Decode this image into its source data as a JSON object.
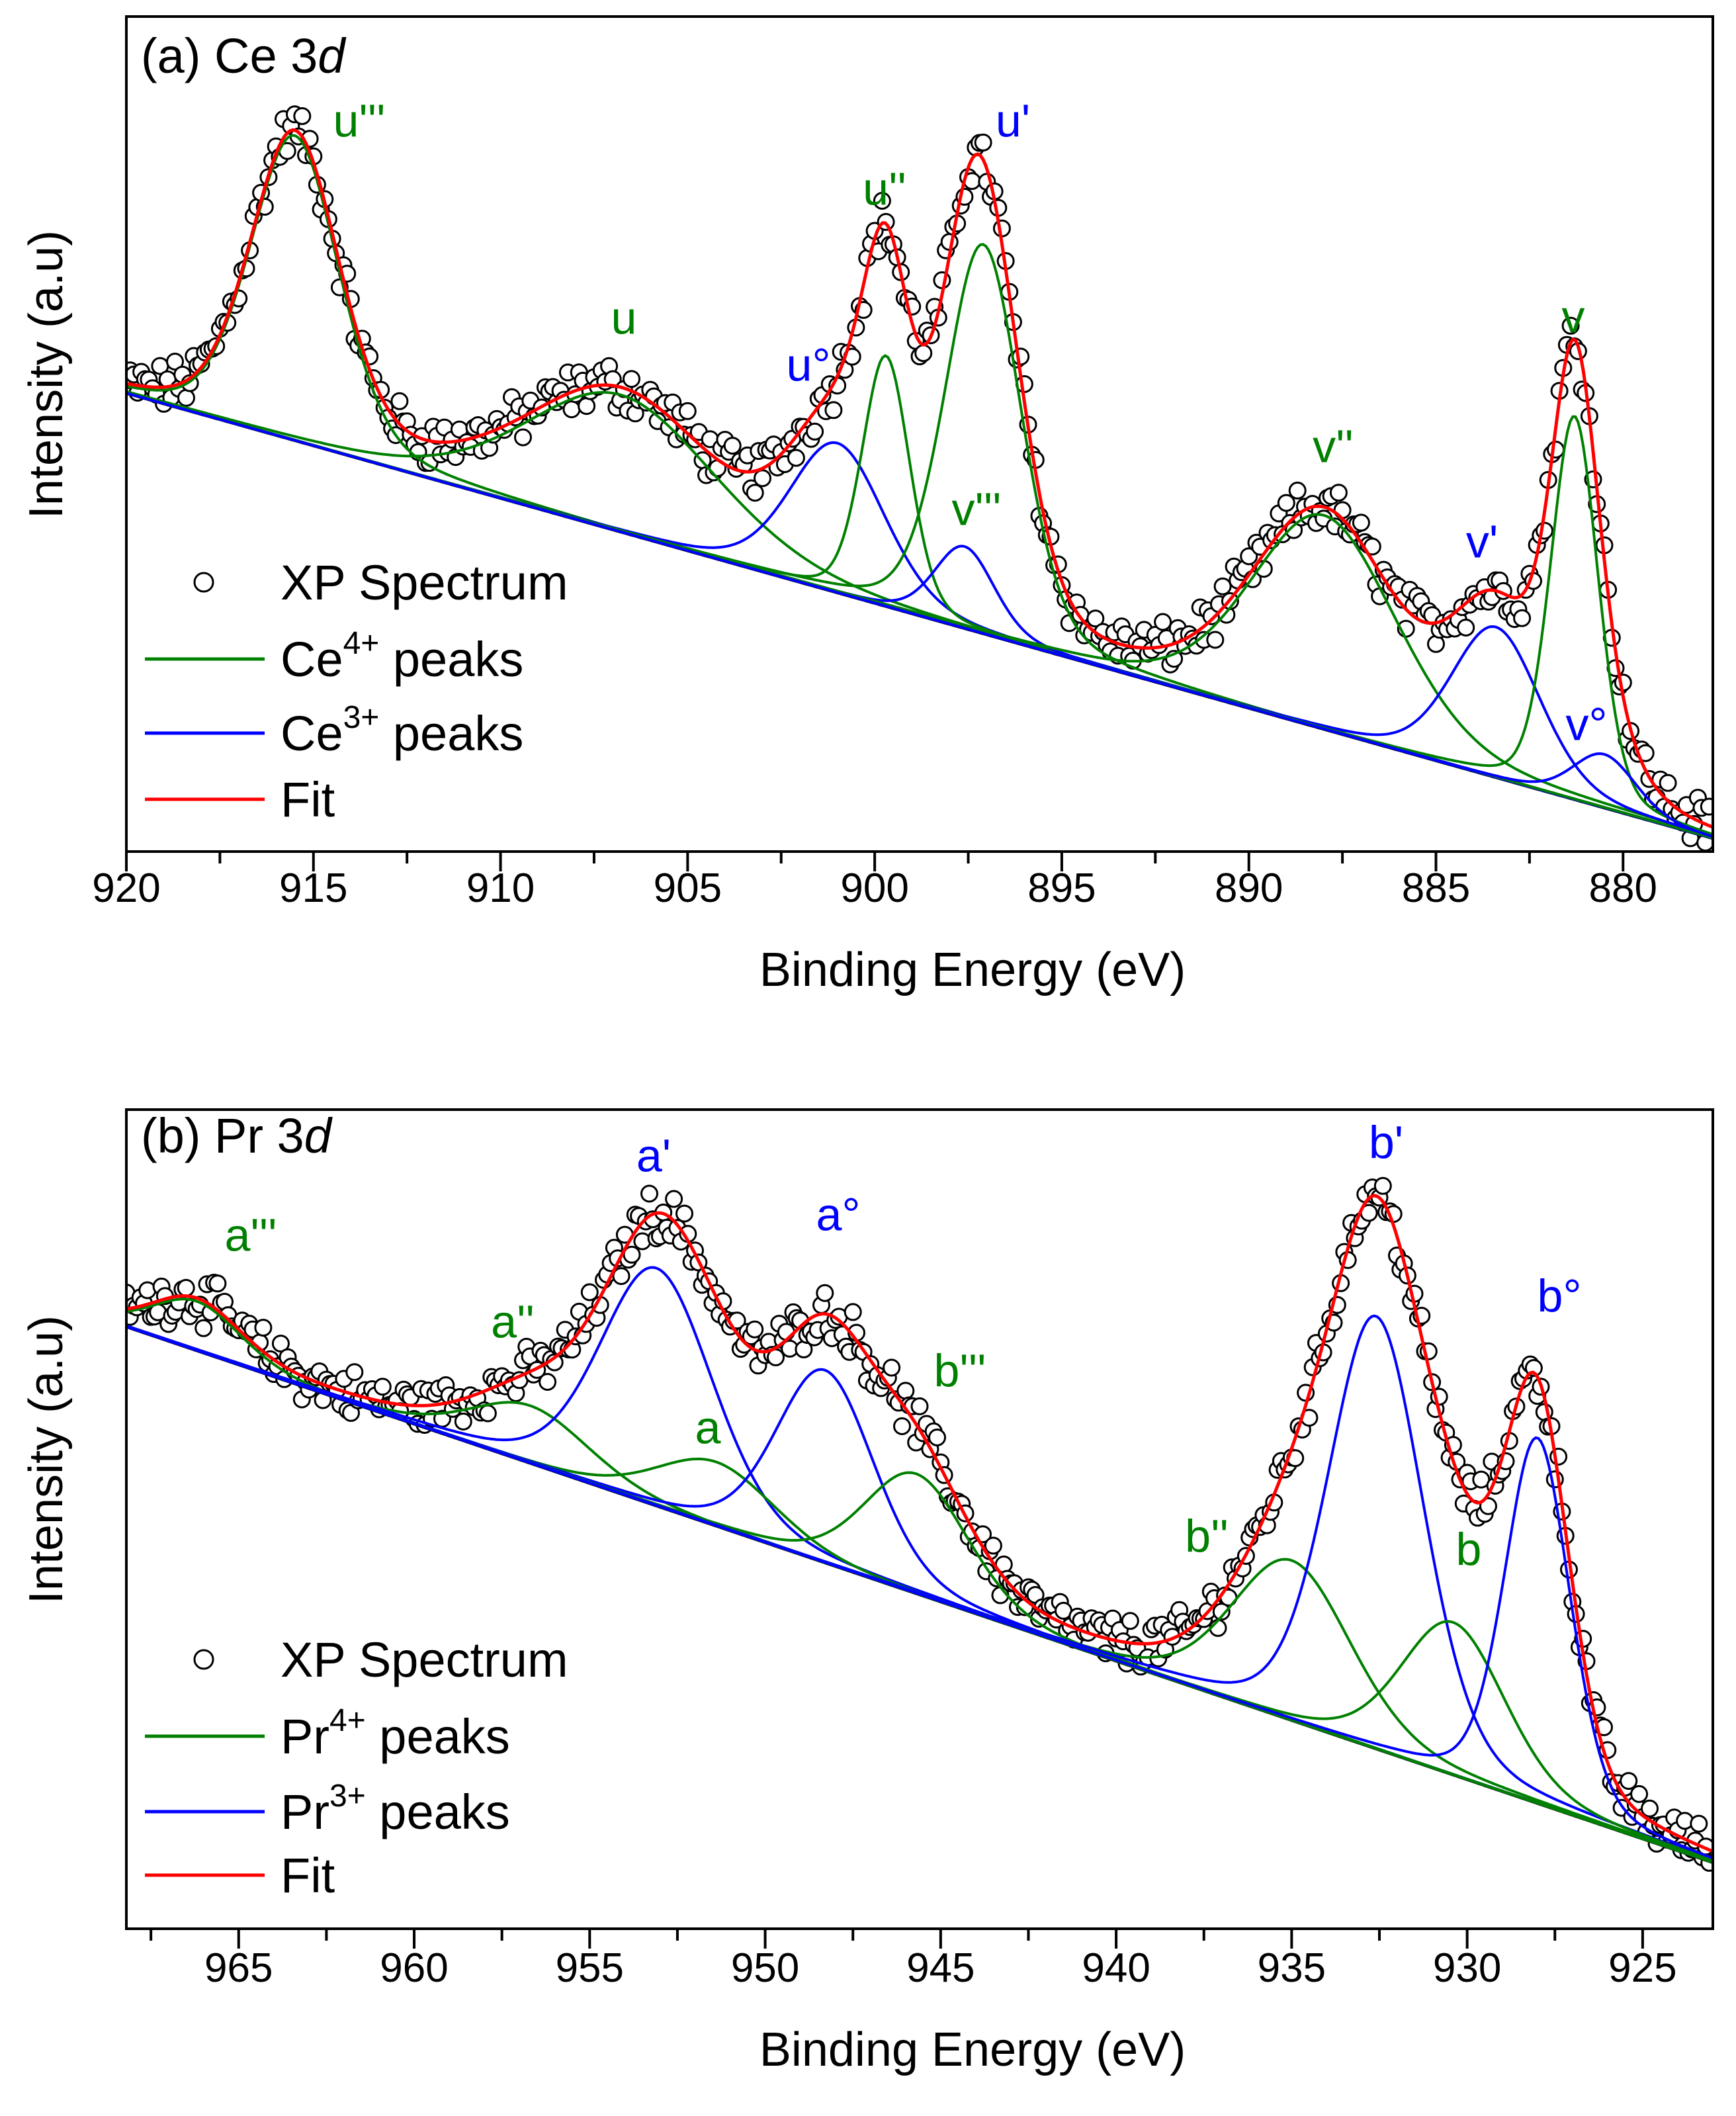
{
  "chart_data": [
    {
      "type": "scatter",
      "title": "(a) Ce 3",
      "title_italic": "d",
      "xlabel": "Binding Energy (eV)",
      "ylabel": "Intensity (a.u)",
      "xlim": [
        920,
        877.6
      ],
      "x_reversed": true,
      "ylim": [
        0,
        100
      ],
      "y_ticks_shown": false,
      "xticks": [
        920,
        915,
        910,
        905,
        900,
        895,
        890,
        885,
        880
      ],
      "grid": false,
      "legend_placement": "bottom-left",
      "legend": [
        {
          "kind": "marker",
          "name": "XP Spectrum",
          "sup": "",
          "suffix": ""
        },
        {
          "kind": "line",
          "name": "Ce",
          "sup": "4+",
          "suffix": " peaks",
          "color": "#008000"
        },
        {
          "kind": "line",
          "name": "Ce",
          "sup": "3+",
          "suffix": " peaks",
          "color": "#0000ff"
        },
        {
          "kind": "line",
          "name": "Fit",
          "sup": "",
          "suffix": "",
          "color": "#ff0000"
        }
      ],
      "baseline": {
        "x": [
          920,
          877.6
        ],
        "y": [
          54.9,
          1.6
        ],
        "color": "#000000"
      },
      "components": [
        {
          "label": "u'''",
          "center": 915.5,
          "height": 36.5,
          "fwhm": 2.8,
          "group": "Ce4+"
        },
        {
          "label": "u''",
          "center": 906.8,
          "height": 16.4,
          "fwhm": 6.0,
          "group": "Ce4+"
        },
        {
          "label": "u'",
          "center": 901.0,
          "height": 17.9,
          "fwhm": 3.0,
          "group": "Ce3+"
        },
        {
          "label": "u",
          "center": 899.7,
          "height": 30.0,
          "fwhm": 1.5,
          "group": "Ce4+"
        },
        {
          "label": "u°",
          "center": 897.6,
          "height": 9.8,
          "fwhm": 1.9,
          "group": "Ce3+"
        },
        {
          "label": "v'''",
          "center": 897.1,
          "height": 46.6,
          "fwhm": 2.4,
          "group": "Ce4+"
        },
        {
          "label": "v''",
          "center": 888.0,
          "height": 25.6,
          "fwhm": 4.6,
          "group": "Ce4+"
        },
        {
          "label": "v'",
          "center": 883.4,
          "height": 18.0,
          "fwhm": 2.8,
          "group": "Ce3+"
        },
        {
          "label": "v",
          "center": 881.3,
          "height": 45.9,
          "fwhm": 1.5,
          "group": "Ce4+"
        },
        {
          "label": "v°",
          "center": 880.5,
          "height": 6.4,
          "fwhm": 2.0,
          "group": "Ce3+"
        }
      ],
      "colors": {
        "Ce4+": "#008000",
        "Ce3+": "#0000ff",
        "fit": "#ff0000",
        "points": "#000000"
      }
    },
    {
      "type": "scatter",
      "title": "(b) Pr 3",
      "title_italic": "d",
      "xlabel": "Binding Energy (eV)",
      "ylabel": "Intensity (a.u)",
      "xlim": [
        968.2,
        923.0
      ],
      "x_reversed": true,
      "ylim": [
        0,
        100
      ],
      "y_ticks_shown": false,
      "xticks": [
        965,
        960,
        955,
        950,
        945,
        940,
        935,
        930,
        925
      ],
      "grid": false,
      "legend_placement": "bottom-left",
      "legend": [
        {
          "kind": "marker",
          "name": "XP Spectrum",
          "sup": "",
          "suffix": ""
        },
        {
          "kind": "line",
          "name": "Pr",
          "sup": "4+",
          "suffix": " peaks",
          "color": "#008000"
        },
        {
          "kind": "line",
          "name": "Pr",
          "sup": "3+",
          "suffix": " peaks",
          "color": "#0000ff"
        },
        {
          "kind": "line",
          "name": "Fit",
          "sup": "",
          "suffix": "",
          "color": "#ff0000"
        }
      ],
      "baseline": {
        "x": [
          968.2,
          923.0
        ],
        "y": [
          73.5,
          8.1
        ],
        "color": "#000000"
      },
      "components": [
        {
          "label": "a'''",
          "center": 966.2,
          "height": 6.0,
          "fwhm": 3.0,
          "group": "Pr4+"
        },
        {
          "label": "a''",
          "center": 956.7,
          "height": 7.0,
          "fwhm": 4.0,
          "group": "Pr4+"
        },
        {
          "label": "a'",
          "center": 953.1,
          "height": 29.0,
          "fwhm": 3.8,
          "group": "Pr3+"
        },
        {
          "label": "a",
          "center": 951.4,
          "height": 7.8,
          "fwhm": 4.0,
          "group": "Pr4+"
        },
        {
          "label": "a°",
          "center": 948.3,
          "height": 23.5,
          "fwhm": 3.3,
          "group": "Pr3+"
        },
        {
          "label": "b'''",
          "center": 945.7,
          "height": 14.6,
          "fwhm": 3.5,
          "group": "Pr4+"
        },
        {
          "label": "b''",
          "center": 935.0,
          "height": 19.5,
          "fwhm": 4.0,
          "group": "Pr4+"
        },
        {
          "label": "b'",
          "center": 932.6,
          "height": 52.8,
          "fwhm": 3.2,
          "group": "Pr3+"
        },
        {
          "label": "b",
          "center": 930.4,
          "height": 18.6,
          "fwhm": 3.5,
          "group": "Pr4+"
        },
        {
          "label": "b°",
          "center": 928.0,
          "height": 44.6,
          "fwhm": 2.2,
          "group": "Pr3+"
        }
      ],
      "colors": {
        "Pr4+": "#008000",
        "Pr3+": "#0000ff",
        "fit": "#ff0000",
        "points": "#000000"
      }
    }
  ]
}
